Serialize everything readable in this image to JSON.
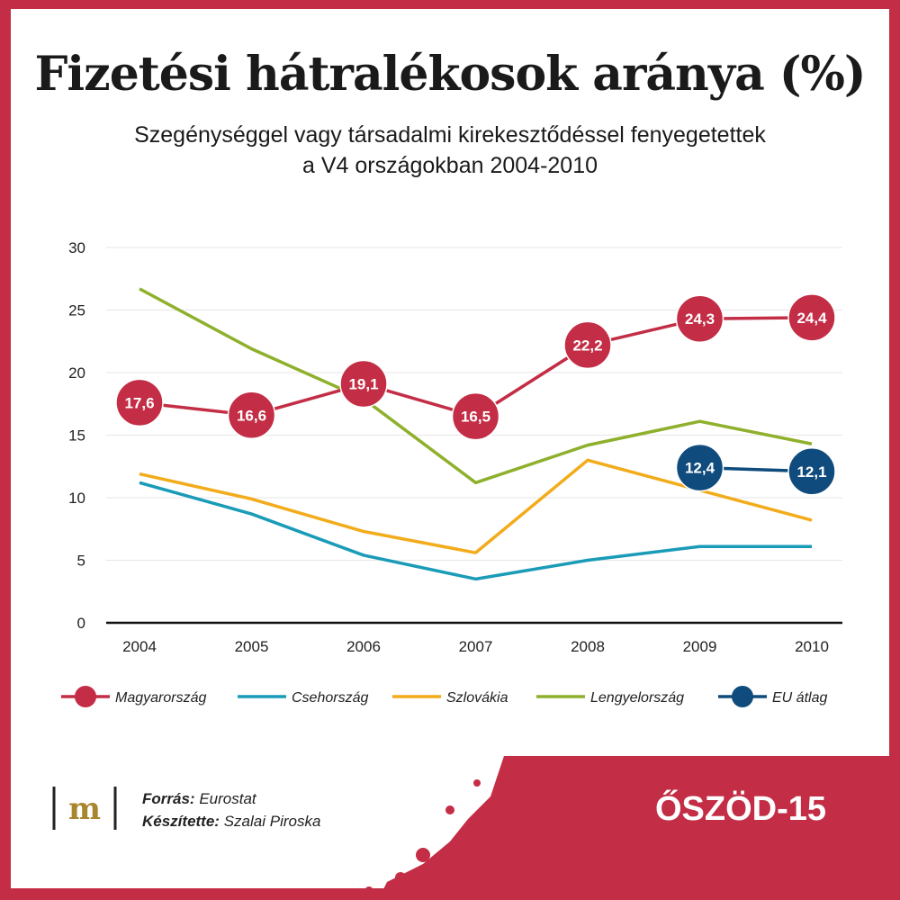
{
  "header": {
    "title": "Fizetési hátralékosok aránya (%)",
    "subtitle_line1": "Szegénységgel vagy társadalmi kirekesztődéssel fenyegetettek",
    "subtitle_line2": "a V4 országokban 2004-2010"
  },
  "footer": {
    "source_label": "Forrás:",
    "source_value": "Eurostat",
    "author_label": "Készítette:",
    "author_value": "Szalai Piroska",
    "logo_letter": "m",
    "brand": "ŐSZÖD-15"
  },
  "colors": {
    "background_red": "#c32d45",
    "hungary": "#c32d45",
    "czech": "#1a9bb8",
    "slovakia": "#f2ac1b",
    "poland": "#8fb02c",
    "eu": "#0f4b7c",
    "logo_gold": "#a8862e"
  },
  "chart_data": {
    "type": "line",
    "x": [
      "2004",
      "2005",
      "2006",
      "2007",
      "2008",
      "2009",
      "2010"
    ],
    "ylim": [
      0,
      30
    ],
    "yticks": [
      "0",
      "5",
      "10",
      "15",
      "20",
      "25",
      "30"
    ],
    "grid": true,
    "legend_position": "bottom",
    "series": [
      {
        "name": "Magyarország",
        "color": "#c32d45",
        "marker": true,
        "labeled": true,
        "values": [
          17.6,
          16.6,
          19.1,
          16.5,
          22.2,
          24.3,
          24.4
        ],
        "labels": [
          "17,6",
          "16,6",
          "19,1",
          "16,5",
          "22,2",
          "24,3",
          "24,4"
        ]
      },
      {
        "name": "Csehország",
        "color": "#1a9bb8",
        "marker": false,
        "labeled": false,
        "values": [
          11.2,
          8.7,
          5.4,
          3.5,
          5.0,
          6.1,
          6.1
        ]
      },
      {
        "name": "Szlovákia",
        "color": "#f2ac1b",
        "marker": false,
        "labeled": false,
        "values": [
          11.9,
          9.9,
          7.3,
          5.6,
          13.0,
          10.6,
          8.2
        ]
      },
      {
        "name": "Lengyelország",
        "color": "#8fb02c",
        "marker": false,
        "labeled": false,
        "values": [
          26.7,
          21.9,
          17.9,
          11.2,
          14.2,
          16.1,
          14.3
        ]
      },
      {
        "name": "EU átlag",
        "color": "#0f4b7c",
        "marker": true,
        "labeled": true,
        "values": [
          null,
          null,
          null,
          null,
          null,
          12.4,
          12.1
        ],
        "labels": [
          null,
          null,
          null,
          null,
          null,
          "12,4",
          "12,1"
        ]
      }
    ]
  }
}
